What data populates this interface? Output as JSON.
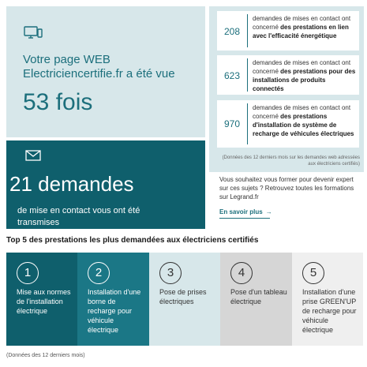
{
  "views_card": {
    "icon": "monitor-icon",
    "line1": "Votre page WEB",
    "line2": "Electriciencertifie.fr a été vue",
    "count": "53 fois"
  },
  "requests_card": {
    "icon": "mail-icon",
    "count": "21 demandes",
    "line1": "de mise en contact vous ont été",
    "line2": "transmises"
  },
  "stats": [
    {
      "number": "208",
      "text_plain": "demandes de mises en contact ont concerné ",
      "text_bold": "des prestations en lien avec l'efficacité énergétique"
    },
    {
      "number": "623",
      "text_plain": "demandes de mises en contact ont concerné ",
      "text_bold": "des prestations pour des installations de produits connectés"
    },
    {
      "number": "970",
      "text_plain": "demandes de mises en contact ont concerné ",
      "text_bold": "des prestations d'installation de système de recharge de véhicules électriques"
    }
  ],
  "stats_note": "(Données des 12 derniers mois sur les demandes web adressées aux électriciens certifiés)",
  "training": {
    "text": "Vous souhaitez vous former pour devenir expert sur ces sujets ? Retrouvez toutes les formations sur Legrand.fr",
    "link_label": "En savoir plus",
    "link_arrow": "→"
  },
  "top5": {
    "title": "Top 5 des prestations les plus demandées aux électriciens certifiés",
    "items": [
      {
        "rank": "1",
        "label": "Mise aux normes de l'installation électrique",
        "bg": "#0f5f6c",
        "fg": "#ffffff"
      },
      {
        "rank": "2",
        "label": "Installation d'une borne de recharge pour véhicule électrique",
        "bg": "#1b7786",
        "fg": "#ffffff"
      },
      {
        "rank": "3",
        "label": "Pose de prises électriques",
        "bg": "#d7e7ea",
        "fg": "#333333"
      },
      {
        "rank": "4",
        "label": "Pose d'un tableau électrique",
        "bg": "#d6d6d6",
        "fg": "#333333"
      },
      {
        "rank": "5",
        "label": "Installation d'une prise GREEN'UP de recharge pour véhicule électrique",
        "bg": "#efefef",
        "fg": "#333333"
      }
    ]
  },
  "footnote": "(Données des 12 derniers mois)",
  "colors": {
    "teal_dark": "#0f5f6c",
    "teal": "#1c6f7c",
    "panel_light": "#d7e7ea"
  }
}
